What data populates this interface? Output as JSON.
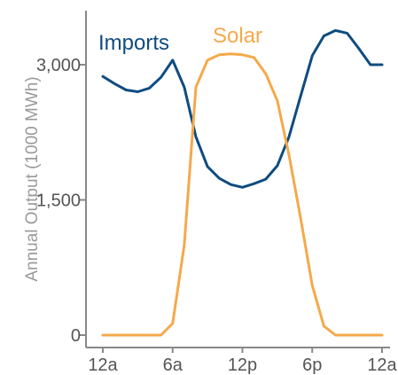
{
  "chart_data": {
    "type": "line",
    "title": "",
    "xlabel": "",
    "ylabel": "Annual Output (1000 MWh)",
    "ylim": [
      0,
      3600
    ],
    "xlim": [
      0,
      24
    ],
    "x_ticks": [
      {
        "value": 0,
        "label": "12a"
      },
      {
        "value": 6,
        "label": "6a"
      },
      {
        "value": 12,
        "label": "12p"
      },
      {
        "value": 18,
        "label": "6p"
      },
      {
        "value": 24,
        "label": "12a"
      }
    ],
    "y_ticks": [
      {
        "value": 0,
        "label": "0"
      },
      {
        "value": 1500,
        "label": "1,500"
      },
      {
        "value": 3000,
        "label": "3,000"
      }
    ],
    "grid": false,
    "legend": "inline labels",
    "x": [
      0,
      1,
      2,
      3,
      4,
      5,
      6,
      7,
      8,
      9,
      10,
      11,
      12,
      13,
      14,
      15,
      16,
      17,
      18,
      19,
      20,
      21,
      22,
      23,
      24
    ],
    "series": [
      {
        "name": "Imports",
        "color": "#0f4c81",
        "values": [
          2870,
          2790,
          2720,
          2700,
          2740,
          2860,
          3050,
          2750,
          2200,
          1870,
          1740,
          1670,
          1640,
          1680,
          1730,
          1880,
          2200,
          2650,
          3100,
          3320,
          3380,
          3350,
          3180,
          3000,
          3000
        ]
      },
      {
        "name": "Solar",
        "color": "#f5a94a",
        "values": [
          0,
          0,
          0,
          0,
          0,
          0,
          130,
          1000,
          2750,
          3050,
          3110,
          3120,
          3110,
          3080,
          2900,
          2600,
          2000,
          1300,
          550,
          100,
          0,
          0,
          0,
          0,
          0
        ]
      }
    ]
  }
}
